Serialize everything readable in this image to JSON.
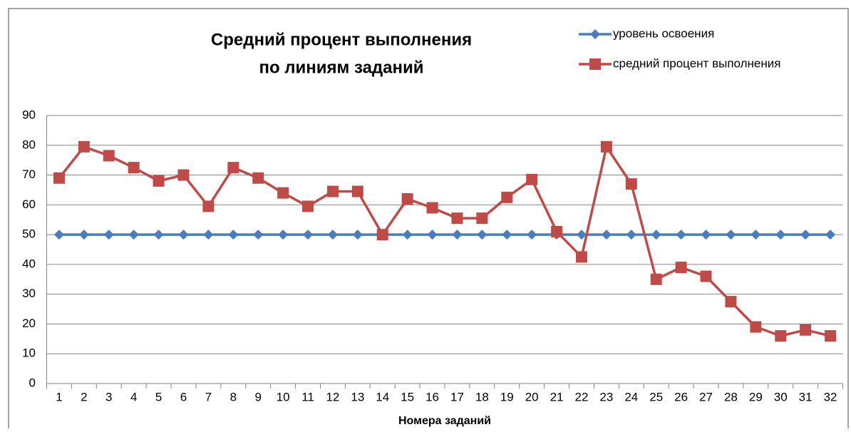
{
  "chart_data": {
    "type": "line",
    "title": [
      "Средний процент выполнения",
      "по линиям заданий"
    ],
    "x_label": "Номера заданий",
    "categories": [
      "1",
      "2",
      "3",
      "4",
      "5",
      "6",
      "7",
      "8",
      "9",
      "10",
      "11",
      "12",
      "13",
      "14",
      "15",
      "16",
      "17",
      "18",
      "19",
      "20",
      "21",
      "22",
      "23",
      "24",
      "25",
      "26",
      "27",
      "28",
      "29",
      "30",
      "31",
      "32"
    ],
    "series": [
      {
        "name": "уровень освоения",
        "color": "#4a7ebb",
        "marker": "diamond",
        "values": [
          50,
          50,
          50,
          50,
          50,
          50,
          50,
          50,
          50,
          50,
          50,
          50,
          50,
          50,
          50,
          50,
          50,
          50,
          50,
          50,
          50,
          50,
          50,
          50,
          50,
          50,
          50,
          50,
          50,
          50,
          50,
          50
        ]
      },
      {
        "name": "средний процент выполнения",
        "color": "#be4b48",
        "marker": "square",
        "values": [
          69,
          79.5,
          76.5,
          72.5,
          68,
          70,
          59.5,
          72.5,
          69,
          64,
          59.5,
          64.5,
          64.5,
          50,
          62,
          59,
          55.5,
          55.5,
          62.5,
          68.5,
          51,
          42.5,
          79.5,
          67,
          35,
          39,
          36,
          27.5,
          19,
          16,
          18,
          16
        ]
      }
    ],
    "ylim": [
      0,
      90
    ],
    "yticks": [
      0,
      10,
      20,
      30,
      40,
      50,
      60,
      70,
      80,
      90
    ],
    "grid": true,
    "legend": "top-right"
  }
}
